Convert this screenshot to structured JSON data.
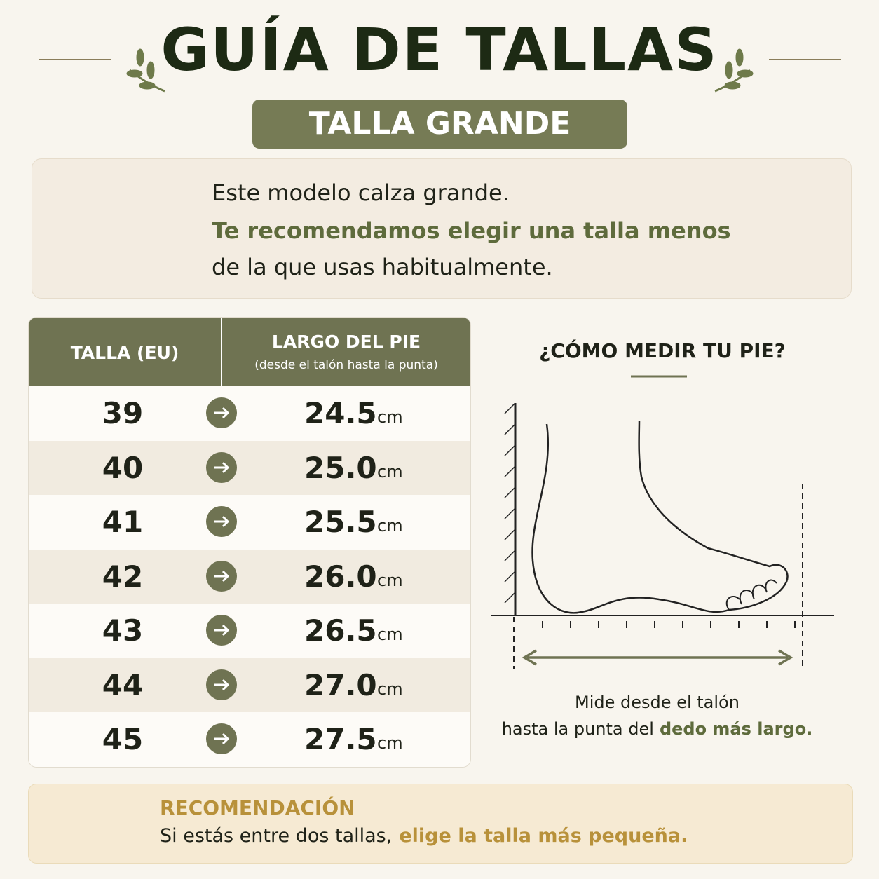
{
  "header": {
    "title": "GUÍA DE TALLAS",
    "badge": "TALLA GRANDE"
  },
  "notice": {
    "line1": "Este modelo calza grande.",
    "line2": "Te recomendamos elegir una talla menos",
    "line3": "de la que usas habitualmente."
  },
  "table": {
    "headers": [
      "TALLA (EU)",
      "LARGO DEL PIE",
      "(desde el talón hasta la punta)"
    ],
    "rows": [
      [
        "39",
        "24.5",
        "cm"
      ],
      [
        "40",
        "25.0",
        "cm"
      ],
      [
        "41",
        "25.5",
        "cm"
      ],
      [
        "42",
        "26.0",
        "cm"
      ],
      [
        "43",
        "26.5",
        "cm"
      ],
      [
        "44",
        "27.0",
        "cm"
      ],
      [
        "45",
        "27.5",
        "cm"
      ]
    ]
  },
  "measure": {
    "title": "¿CÓMO MEDIR TU PIE?",
    "caption1": "Mide desde el talón",
    "caption2": "hasta la punta del",
    "caption_emphasis": "dedo más largo."
  },
  "recommendation": {
    "title": "RECOMENDACIÓN",
    "text": "Si estás entre dos tallas,",
    "emphasis": "elige la talla más pequeña."
  }
}
